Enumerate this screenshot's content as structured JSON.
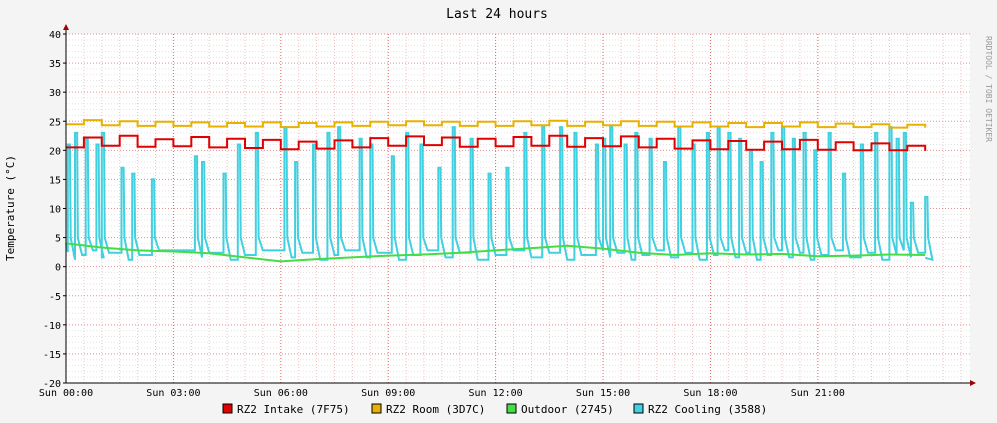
{
  "chart_data": {
    "type": "line",
    "title": "Last 24 hours",
    "ylabel": "Temperature (°C)",
    "watermark": "RRDTOOL / TOBI OETIKER",
    "ylim": [
      -20,
      40
    ],
    "y_ticks": [
      40,
      35,
      30,
      25,
      20,
      15,
      10,
      5,
      0,
      -5,
      -10,
      -15,
      -20
    ],
    "x_range_hours": [
      0,
      25.25
    ],
    "x_ticks": [
      {
        "hour": 0,
        "label": "Sun 00:00"
      },
      {
        "hour": 3,
        "label": "Sun 03:00"
      },
      {
        "hour": 6,
        "label": "Sun 06:00"
      },
      {
        "hour": 9,
        "label": "Sun 09:00"
      },
      {
        "hour": 12,
        "label": "Sun 12:00"
      },
      {
        "hour": 15,
        "label": "Sun 15:00"
      },
      {
        "hour": 18,
        "label": "Sun 18:00"
      },
      {
        "hour": 21,
        "label": "Sun 21:00"
      }
    ],
    "grid": true,
    "legend_position": "bottom",
    "series": [
      {
        "name": "RZ2 Intake (7F75)",
        "color": "#e00000",
        "x": [
          0,
          0.5,
          1,
          1.5,
          2,
          2.5,
          3,
          3.5,
          4,
          4.5,
          5,
          5.5,
          6,
          6.5,
          7,
          7.5,
          8,
          8.5,
          9,
          9.5,
          10,
          10.5,
          11,
          11.5,
          12,
          12.5,
          13,
          13.5,
          14,
          14.5,
          15,
          15.5,
          16,
          16.5,
          17,
          17.5,
          18,
          18.5,
          19,
          19.5,
          20,
          20.5,
          21,
          21.5,
          22,
          22.5,
          23,
          23.5,
          24
        ],
        "y": [
          20.5,
          22.2,
          20.8,
          22.5,
          20.6,
          21.9,
          20.7,
          22.3,
          20.5,
          22.0,
          20.4,
          21.8,
          20.2,
          21.5,
          20.3,
          21.7,
          20.5,
          22.1,
          20.8,
          22.4,
          20.9,
          22.2,
          20.6,
          22.0,
          20.7,
          22.3,
          20.8,
          22.5,
          20.6,
          22.1,
          20.7,
          22.4,
          20.5,
          22.0,
          20.3,
          21.7,
          20.2,
          21.6,
          20.1,
          21.5,
          20.2,
          21.8,
          20.1,
          21.4,
          20.0,
          21.2,
          20.0,
          20.8,
          19.9
        ]
      },
      {
        "name": "RZ2 Room (3D7C)",
        "color": "#e8b000",
        "x": [
          0,
          0.5,
          1,
          1.5,
          2,
          2.5,
          3,
          3.5,
          4,
          4.5,
          5,
          5.5,
          6,
          6.5,
          7,
          7.5,
          8,
          8.5,
          9,
          9.5,
          10,
          10.5,
          11,
          11.5,
          12,
          12.5,
          13,
          13.5,
          14,
          14.5,
          15,
          15.5,
          16,
          16.5,
          17,
          17.5,
          18,
          18.5,
          19,
          19.5,
          20,
          20.5,
          21,
          21.5,
          22,
          22.5,
          23,
          23.5,
          24
        ],
        "y": [
          24.5,
          25.2,
          24.3,
          25.0,
          24.2,
          24.9,
          24.2,
          24.8,
          24.1,
          24.7,
          24.1,
          24.8,
          24.0,
          24.7,
          24.1,
          24.8,
          24.2,
          24.9,
          24.3,
          25.0,
          24.3,
          24.9,
          24.2,
          24.9,
          24.2,
          25.0,
          24.3,
          25.1,
          24.2,
          24.9,
          24.3,
          25.0,
          24.2,
          24.9,
          24.1,
          24.8,
          24.1,
          24.7,
          24.0,
          24.7,
          24.1,
          24.8,
          24.0,
          24.6,
          24.0,
          24.5,
          23.9,
          24.4,
          23.9
        ]
      },
      {
        "name": "Outdoor (2745)",
        "color": "#44dd44",
        "x": [
          0,
          1,
          2,
          3,
          4,
          5,
          6,
          7,
          8,
          9,
          10,
          11,
          12,
          13,
          14,
          15,
          16,
          17,
          18,
          19,
          20,
          21,
          22,
          23,
          24
        ],
        "y": [
          4.0,
          3.3,
          2.8,
          2.6,
          2.3,
          1.6,
          0.9,
          1.3,
          1.6,
          1.9,
          2.1,
          2.4,
          2.8,
          3.2,
          3.6,
          3.1,
          2.4,
          2.0,
          2.3,
          2.1,
          2.2,
          1.8,
          1.9,
          2.1,
          2.0
        ]
      },
      {
        "name": "RZ2 Cooling (3588)",
        "color": "#40d0e0",
        "x": [
          0.05,
          0.25,
          0.55,
          0.85,
          1.0,
          1.55,
          1.85,
          2.4,
          3.6,
          3.8,
          4.4,
          4.8,
          5.3,
          6.1,
          6.4,
          6.9,
          7.3,
          7.6,
          8.2,
          8.5,
          9.1,
          9.5,
          9.9,
          10.4,
          10.8,
          11.3,
          11.8,
          12.3,
          12.8,
          13.3,
          13.8,
          14.2,
          14.8,
          15.0,
          15.2,
          15.6,
          15.9,
          16.3,
          16.7,
          17.1,
          17.5,
          17.9,
          18.2,
          18.5,
          18.8,
          19.1,
          19.4,
          19.7,
          20.0,
          20.3,
          20.6,
          20.9,
          21.3,
          21.7,
          22.2,
          22.6,
          23.0,
          23.2,
          23.4,
          23.6,
          24.0
        ],
        "peaks": [
          21,
          23,
          22,
          21,
          23,
          17,
          16,
          15,
          19,
          18,
          16,
          21,
          23,
          24,
          18,
          21,
          23,
          24,
          22,
          21,
          19,
          23,
          21,
          17,
          24,
          22,
          16,
          17,
          23,
          24,
          24,
          23,
          21,
          22,
          24,
          21,
          23,
          22,
          18,
          24,
          21,
          23,
          24,
          23,
          22,
          20,
          18,
          23,
          24,
          22,
          23,
          20,
          23,
          16,
          21,
          23,
          24,
          22,
          23,
          11,
          12
        ]
      }
    ]
  }
}
